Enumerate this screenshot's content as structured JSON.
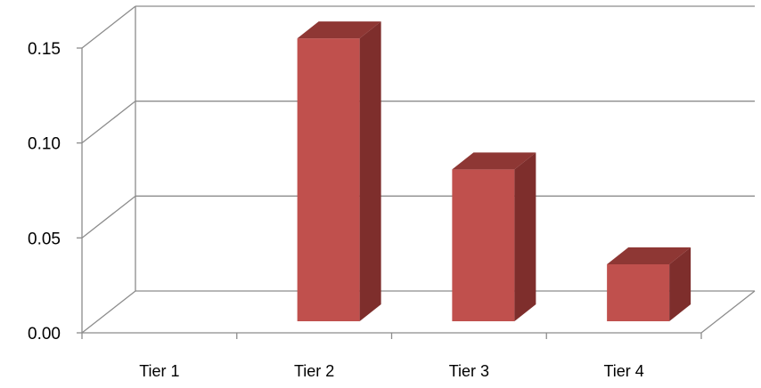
{
  "chart_data": {
    "type": "bar",
    "style": "3d-column",
    "categories": [
      "Tier 1",
      "Tier 2",
      "Tier 3",
      "Tier 4"
    ],
    "values": [
      0.0,
      0.149,
      0.08,
      0.03
    ],
    "ylim": [
      0,
      0.15
    ],
    "yticks": [
      0.0,
      0.05,
      0.1,
      0.15
    ],
    "ytick_labels": [
      "0.00",
      "0.05",
      "0.10",
      "0.15"
    ],
    "title": "",
    "xlabel": "",
    "ylabel": "",
    "grid": true,
    "legend": "none",
    "colors": {
      "bar_front": "#C0504D",
      "bar_side": "#7E2E2C",
      "bar_top": "#8E3734",
      "grid": "#8C8C8C",
      "background": "#FFFFFF"
    }
  }
}
